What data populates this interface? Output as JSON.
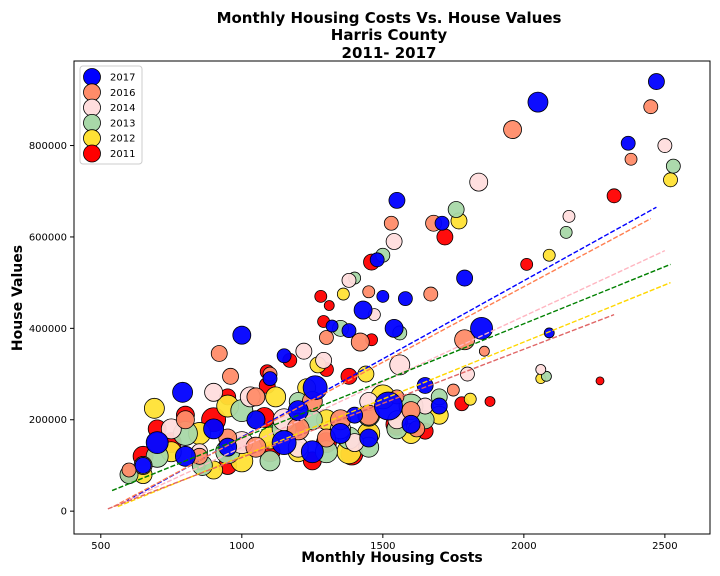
{
  "chart_data": {
    "type": "scatter",
    "title": [
      "Monthly Housing Costs Vs. House Values",
      "Harris County",
      "2011- 2017"
    ],
    "xlabel": "Monthly Housing Costs",
    "ylabel": "House Values",
    "xlim": [
      405,
      2660
    ],
    "ylim": [
      -50000,
      985000
    ],
    "xticks": [
      500,
      1000,
      1500,
      2000,
      2500
    ],
    "xtick_labels": [
      "500",
      "1000",
      "1500",
      "2000",
      "2500"
    ],
    "yticks": [
      0,
      200000,
      400000,
      600000,
      800000
    ],
    "ytick_labels": [
      "0",
      "200000",
      "400000",
      "600000",
      "800000"
    ],
    "grid": false,
    "legend_position": "top-left",
    "series": [
      {
        "name": "2017",
        "color": "#0000ff",
        "trend": {
          "x": [
            570,
            2470
          ],
          "y": [
            15000,
            665000
          ],
          "color": "#0000ff"
        },
        "points": [
          [
            2470,
            940000,
            8
          ],
          [
            2050,
            895000,
            10
          ],
          [
            2370,
            805000,
            7
          ],
          [
            1550,
            680000,
            8
          ],
          [
            1710,
            630000,
            7
          ],
          [
            1790,
            510000,
            8
          ],
          [
            1580,
            465000,
            7
          ],
          [
            1500,
            470000,
            6
          ],
          [
            1480,
            550000,
            7
          ],
          [
            1430,
            440000,
            9
          ],
          [
            1540,
            400000,
            9
          ],
          [
            1380,
            395000,
            7
          ],
          [
            1320,
            405000,
            6
          ],
          [
            1850,
            400000,
            11
          ],
          [
            1000,
            385000,
            9
          ],
          [
            1150,
            340000,
            7
          ],
          [
            1260,
            270000,
            12
          ],
          [
            790,
            260000,
            10
          ],
          [
            1100,
            290000,
            7
          ],
          [
            1520,
            230000,
            14
          ],
          [
            1650,
            275000,
            8
          ],
          [
            2090,
            390000,
            5
          ],
          [
            1200,
            220000,
            10
          ],
          [
            1400,
            210000,
            8
          ],
          [
            900,
            180000,
            10
          ],
          [
            1050,
            200000,
            9
          ],
          [
            700,
            150000,
            11
          ],
          [
            1350,
            170000,
            10
          ],
          [
            1600,
            190000,
            9
          ],
          [
            1150,
            150000,
            12
          ],
          [
            950,
            140000,
            9
          ],
          [
            800,
            120000,
            10
          ],
          [
            650,
            100000,
            8
          ],
          [
            1250,
            130000,
            11
          ],
          [
            1450,
            160000,
            9
          ],
          [
            1700,
            230000,
            8
          ]
        ]
      },
      {
        "name": "2016",
        "color": "#ff8c69",
        "trend": {
          "x": [
            545,
            2450
          ],
          "y": [
            10000,
            640000
          ],
          "color": "#ff7f50"
        },
        "points": [
          [
            2450,
            885000,
            7
          ],
          [
            1960,
            835000,
            9
          ],
          [
            2380,
            770000,
            6
          ],
          [
            1530,
            630000,
            7
          ],
          [
            1680,
            630000,
            8
          ],
          [
            1790,
            375000,
            10
          ],
          [
            1670,
            475000,
            7
          ],
          [
            1450,
            480000,
            6
          ],
          [
            1420,
            370000,
            9
          ],
          [
            1300,
            380000,
            7
          ],
          [
            920,
            345000,
            8
          ],
          [
            960,
            295000,
            8
          ],
          [
            1050,
            250000,
            9
          ],
          [
            1250,
            240000,
            10
          ],
          [
            1600,
            220000,
            9
          ],
          [
            1860,
            350000,
            5
          ],
          [
            1100,
            300000,
            7
          ],
          [
            1350,
            200000,
            10
          ],
          [
            800,
            200000,
            9
          ],
          [
            1550,
            250000,
            7
          ],
          [
            700,
            150000,
            10
          ],
          [
            1200,
            180000,
            11
          ],
          [
            950,
            160000,
            9
          ],
          [
            1450,
            210000,
            10
          ],
          [
            1750,
            265000,
            6
          ],
          [
            850,
            120000,
            8
          ],
          [
            1050,
            140000,
            10
          ],
          [
            1300,
            160000,
            9
          ],
          [
            600,
            90000,
            7
          ],
          [
            1620,
            180000,
            8
          ]
        ]
      },
      {
        "name": "2014",
        "color": "#ffdddd",
        "trend": {
          "x": [
            555,
            2500
          ],
          "y": [
            12000,
            570000
          ],
          "color": "#ffb6c1"
        },
        "points": [
          [
            2500,
            800000,
            7
          ],
          [
            1840,
            720000,
            9
          ],
          [
            2160,
            645000,
            6
          ],
          [
            1540,
            590000,
            8
          ],
          [
            1380,
            505000,
            7
          ],
          [
            1470,
            430000,
            6
          ],
          [
            1560,
            320000,
            10
          ],
          [
            1220,
            350000,
            8
          ],
          [
            1030,
            250000,
            10
          ],
          [
            1290,
            330000,
            8
          ],
          [
            1800,
            300000,
            7
          ],
          [
            2060,
            310000,
            5
          ],
          [
            1450,
            240000,
            9
          ],
          [
            900,
            260000,
            9
          ],
          [
            1150,
            200000,
            11
          ],
          [
            1650,
            230000,
            8
          ],
          [
            750,
            180000,
            10
          ],
          [
            1350,
            180000,
            10
          ],
          [
            1000,
            150000,
            11
          ],
          [
            1550,
            200000,
            9
          ],
          [
            1200,
            140000,
            10
          ],
          [
            850,
            130000,
            8
          ],
          [
            650,
            100000,
            9
          ],
          [
            1400,
            150000,
            9
          ]
        ]
      },
      {
        "name": "2013",
        "color": "#a8d8a8",
        "trend": {
          "x": [
            540,
            2520
          ],
          "y": [
            45000,
            540000
          ],
          "color": "#008000"
        },
        "points": [
          [
            2530,
            755000,
            7
          ],
          [
            2150,
            610000,
            6
          ],
          [
            1760,
            660000,
            8
          ],
          [
            1500,
            560000,
            7
          ],
          [
            1400,
            510000,
            6
          ],
          [
            1350,
            400000,
            8
          ],
          [
            1560,
            390000,
            7
          ],
          [
            2080,
            295000,
            5
          ],
          [
            1600,
            230000,
            12
          ],
          [
            1450,
            210000,
            11
          ],
          [
            1250,
            200000,
            10
          ],
          [
            1000,
            220000,
            11
          ],
          [
            800,
            170000,
            12
          ],
          [
            1150,
            180000,
            12
          ],
          [
            1700,
            250000,
            8
          ],
          [
            1380,
            160000,
            11
          ],
          [
            950,
            130000,
            12
          ],
          [
            700,
            120000,
            11
          ],
          [
            1550,
            180000,
            10
          ],
          [
            1300,
            130000,
            11
          ],
          [
            1100,
            110000,
            10
          ],
          [
            600,
            80000,
            9
          ],
          [
            860,
            100000,
            10
          ],
          [
            1450,
            140000,
            10
          ],
          [
            1650,
            200000,
            9
          ],
          [
            1200,
            240000,
            9
          ]
        ]
      },
      {
        "name": "2012",
        "color": "#ffe135",
        "trend": {
          "x": [
            560,
            2520
          ],
          "y": [
            10000,
            500000
          ],
          "color": "#ffd700"
        },
        "points": [
          [
            2520,
            725000,
            7
          ],
          [
            1770,
            635000,
            8
          ],
          [
            2090,
            560000,
            6
          ],
          [
            1360,
            475000,
            6
          ],
          [
            1440,
            300000,
            8
          ],
          [
            1270,
            320000,
            8
          ],
          [
            690,
            225000,
            10
          ],
          [
            2060,
            290000,
            5
          ],
          [
            1810,
            245000,
            6
          ],
          [
            1120,
            250000,
            10
          ],
          [
            950,
            230000,
            11
          ],
          [
            1500,
            250000,
            12
          ],
          [
            1230,
            270000,
            9
          ],
          [
            850,
            170000,
            11
          ],
          [
            1100,
            160000,
            11
          ],
          [
            1380,
            130000,
            12
          ],
          [
            1600,
            170000,
            10
          ],
          [
            1000,
            110000,
            11
          ],
          [
            750,
            130000,
            10
          ],
          [
            1300,
            200000,
            10
          ],
          [
            1450,
            170000,
            11
          ],
          [
            900,
            90000,
            9
          ],
          [
            650,
            80000,
            9
          ],
          [
            1200,
            130000,
            10
          ],
          [
            1700,
            210000,
            9
          ],
          [
            1050,
            200000,
            9
          ]
        ]
      },
      {
        "name": "2011",
        "color": "#ff0000",
        "trend": {
          "x": [
            525,
            2320
          ],
          "y": [
            5000,
            430000
          ],
          "color": "#e06666"
        },
        "points": [
          [
            2320,
            690000,
            7
          ],
          [
            1720,
            600000,
            8
          ],
          [
            2010,
            540000,
            6
          ],
          [
            1460,
            545000,
            8
          ],
          [
            1280,
            470000,
            6
          ],
          [
            1310,
            450000,
            5
          ],
          [
            1290,
            415000,
            6
          ],
          [
            1460,
            375000,
            6
          ],
          [
            1170,
            330000,
            7
          ],
          [
            1090,
            305000,
            7
          ],
          [
            1380,
            295000,
            8
          ],
          [
            1300,
            310000,
            7
          ],
          [
            1090,
            275000,
            8
          ],
          [
            2270,
            285000,
            4
          ],
          [
            1880,
            240000,
            5
          ],
          [
            1780,
            235000,
            7
          ],
          [
            1080,
            205000,
            10
          ],
          [
            1550,
            190000,
            11
          ],
          [
            1650,
            175000,
            8
          ],
          [
            950,
            250000,
            8
          ],
          [
            800,
            210000,
            9
          ],
          [
            700,
            180000,
            9
          ],
          [
            1390,
            125000,
            11
          ],
          [
            1200,
            195000,
            9
          ],
          [
            1000,
            145000,
            9
          ],
          [
            900,
            200000,
            12
          ],
          [
            750,
            150000,
            10
          ],
          [
            650,
            120000,
            10
          ],
          [
            1300,
            150000,
            10
          ],
          [
            1450,
            170000,
            9
          ],
          [
            850,
            110000,
            9
          ],
          [
            1100,
            130000,
            10
          ],
          [
            1250,
            110000,
            9
          ],
          [
            600,
            80000,
            8
          ],
          [
            950,
            100000,
            9
          ],
          [
            1350,
            190000,
            8
          ]
        ]
      }
    ]
  }
}
